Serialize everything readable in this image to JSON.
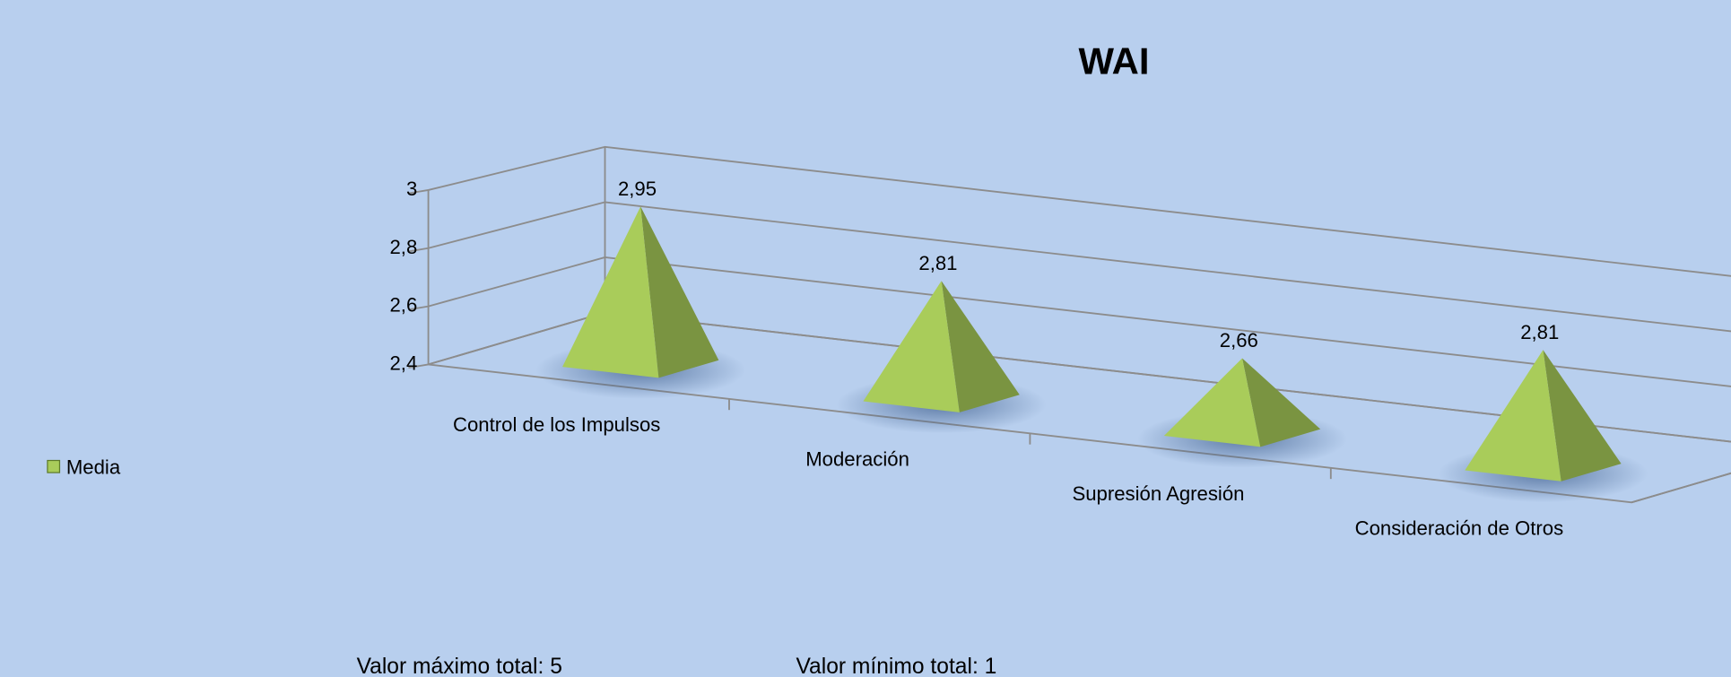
{
  "chart_data": {
    "type": "pyramid3d",
    "title": "WAI",
    "categories": [
      "Control de los Impulsos",
      "Moderación",
      "Supresión Agresión",
      "Consideración de Otros"
    ],
    "series": [
      {
        "name": "Media",
        "color": "#a9cc5a",
        "values": [
          2.95,
          2.81,
          2.66,
          2.81
        ],
        "value_labels": [
          "2,95",
          "2,81",
          "2,66",
          "2,81"
        ]
      }
    ],
    "ylim": [
      2.4,
      3
    ],
    "yticks": [
      {
        "value": 2.4,
        "label": "2,4"
      },
      {
        "value": 2.6,
        "label": "2,6"
      },
      {
        "value": 2.8,
        "label": "2,8"
      },
      3
    ],
    "grid": true,
    "legend": "left",
    "annotations": [
      "Valor máximo total: 5",
      "Valor mínimo total: 1"
    ]
  }
}
